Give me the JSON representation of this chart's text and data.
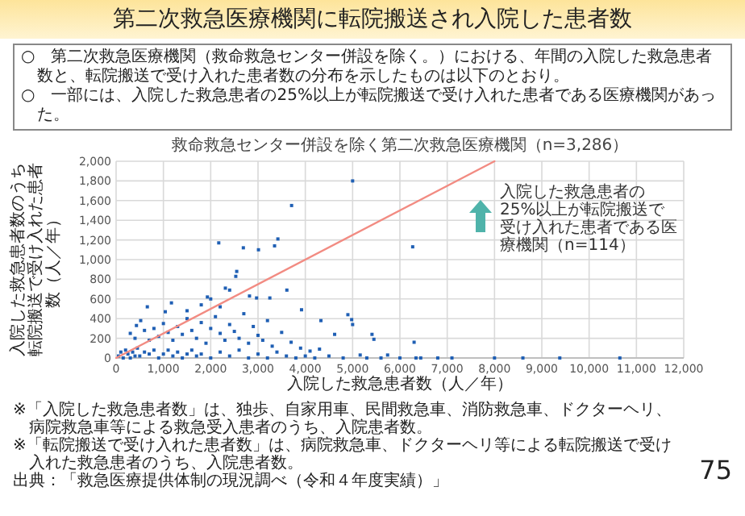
{
  "chart_data": {
    "type": "scatter",
    "title": "第二次救急医療機関に転院搬送され入院した患者数",
    "subtitle": "救命救急センター併設を除く第二次救急医療機関（n=3,286）",
    "xlabel": "入院した救急患者数（人／年）",
    "ylabel": "入院した救急患者数のうち転院搬送で受け入れた患者数（人／年）",
    "annotations": [
      "○　第二次救急医療機関（救命救急センター併設を除く。）における、年間の入院した救急患者数と、転院搬送で受け入れた患者数の分布を示したものは以下のとおり。",
      "○　一部には、入院した救急患者の25%以上が転院搬送で受け入れた患者である医療機関があった。",
      "入院した救急患者の25%以上が転院搬送で受け入れた患者である医療機関（n=114）",
      "※「入院した救急患者数」は、独歩、自家用車、民間救急車、消防救急車、ドクターヘリ、病院救急車等による救急受入患者のうち、入院患者数。",
      "※「転院搬送で受け入れた患者数」は、病院救急車、ドクターヘリ等による転院搬送で受け入れた救急患者のうち、入院患者数。",
      "出典：「救急医療提供体制の現況調べ（令和４年度実績）」",
      "75"
    ],
    "xlim": [
      0,
      12000
    ],
    "xticks": [
      0,
      {
        "value": 1000,
        "label": "1,000"
      },
      {
        "value": 2000,
        "label": "2,000"
      },
      {
        "value": 3000,
        "label": "3,000"
      },
      {
        "value": 4000,
        "label": "4,000"
      },
      {
        "value": 5000,
        "label": "5,000"
      },
      {
        "value": 6000,
        "label": "6,000"
      },
      {
        "value": 7000,
        "label": "7,000"
      },
      {
        "value": 8000,
        "label": "8,000"
      },
      {
        "value": 9000,
        "label": "9,000"
      },
      {
        "value": 10000,
        "label": "10,000"
      },
      {
        "value": 11000,
        "label": "11,000"
      },
      {
        "value": 12000,
        "label": "12,000"
      }
    ],
    "ylim": [
      0,
      2000
    ],
    "yticks": [
      0,
      200,
      400,
      600,
      800,
      {
        "value": 1000,
        "label": "1,000"
      },
      {
        "value": 1200,
        "label": "1,200"
      },
      {
        "value": 1400,
        "label": "1,400"
      },
      {
        "value": 1600,
        "label": "1,600"
      },
      {
        "value": 1800,
        "label": "1,800"
      },
      {
        "value": 2000,
        "label": "2,000"
      }
    ],
    "grid": true,
    "series": [
      {
        "color": "#1f5fb4",
        "marker": "square",
        "x": [
          5000,
          3710,
          2170,
          3420,
          3350,
          2690,
          3010,
          6270,
          2550,
          2530,
          2400,
          2310,
          1930,
          1170,
          660,
          3610,
          3250,
          2820,
          2970,
          1040,
          4900,
          4980,
          5000,
          4330,
          3920,
          5410,
          5450,
          4620,
          520,
          430,
          6300,
          6440,
          7100,
          9380,
          10650,
          6340,
          5740,
          5160,
          4300,
          300,
          400,
          600,
          700,
          800,
          900,
          1000,
          1100,
          1200,
          1300,
          1400,
          1500,
          1600,
          1700,
          1800,
          1900,
          2000,
          2100,
          2200,
          2300,
          2400,
          2500,
          2600,
          2700,
          2800,
          2900,
          3000,
          3100,
          3200,
          3300,
          3500,
          3700,
          3900,
          4100,
          2200,
          1500,
          1800,
          2000,
          50,
          100,
          150,
          200,
          250,
          300,
          350,
          400,
          450,
          500,
          600,
          700,
          800,
          900,
          1000,
          1100,
          1200,
          1300,
          1400,
          1500,
          1600,
          1700,
          1800,
          2000,
          2200,
          2400,
          2600,
          2800,
          3000,
          3200,
          3400,
          3600,
          3800,
          4000,
          4200,
          4500,
          4800,
          5300,
          5600,
          6000,
          6800,
          8000,
          8600
        ],
        "values": [
          1800,
          1550,
          1170,
          1210,
          1140,
          1120,
          1100,
          1130,
          880,
          830,
          690,
          710,
          620,
          560,
          520,
          690,
          610,
          630,
          610,
          470,
          440,
          390,
          340,
          380,
          490,
          240,
          190,
          240,
          380,
          330,
          160,
          0,
          0,
          0,
          0,
          0,
          30,
          30,
          90,
          250,
          200,
          280,
          180,
          300,
          220,
          350,
          260,
          180,
          320,
          240,
          400,
          280,
          200,
          360,
          150,
          300,
          420,
          250,
          180,
          340,
          270,
          200,
          450,
          150,
          320,
          230,
          180,
          380,
          120,
          260,
          160,
          100,
          70,
          520,
          480,
          540,
          600,
          20,
          60,
          0,
          80,
          40,
          0,
          60,
          20,
          100,
          20,
          60,
          40,
          80,
          0,
          40,
          80,
          20,
          60,
          0,
          40,
          80,
          20,
          40,
          0,
          60,
          20,
          80,
          0,
          40,
          0,
          60,
          20,
          0,
          20,
          0,
          20,
          0,
          0,
          0,
          0,
          0,
          0,
          0
        ]
      },
      {
        "type": "line",
        "color": "#f28b82",
        "x": [
          0,
          8000
        ],
        "values": [
          0,
          2000
        ]
      }
    ]
  }
}
